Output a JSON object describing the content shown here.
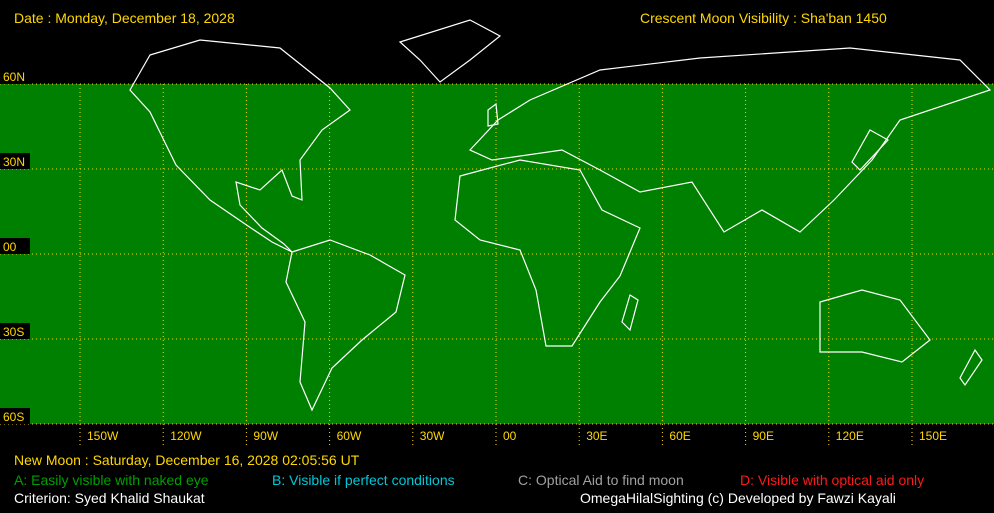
{
  "header": {
    "date": "Date : Monday, December 18, 2028",
    "title": "Crescent Moon Visibility : Sha'ban  1450"
  },
  "map": {
    "lat_labels": [
      "60N",
      "30N",
      "00",
      "30S",
      "60S"
    ],
    "lon_labels": [
      "150W",
      "120W",
      "90W",
      "60W",
      "30W",
      "00",
      "30E",
      "60E",
      "90E",
      "120E",
      "150E"
    ]
  },
  "footer": {
    "new_moon": "New Moon : Saturday, December 16, 2028  02:05:56  UT",
    "legend": [
      "A: Easily visible with naked eye",
      "B: Visible if perfect conditions",
      "C: Optical Aid to find moon",
      "D: Visible with optical aid only"
    ],
    "criterion": "Criterion: Syed Khalid Shaukat",
    "credit": "OmegaHilalSighting  (c)  Developed by Fawzi Kayali"
  }
}
